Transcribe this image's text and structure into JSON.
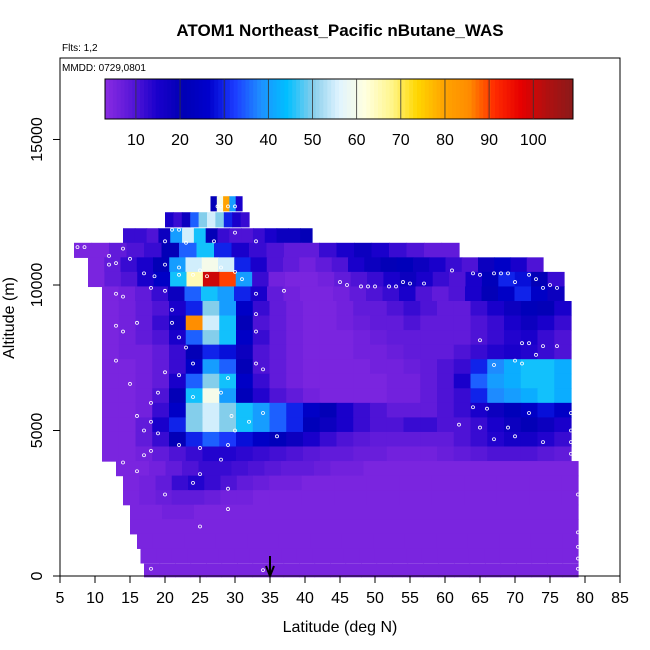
{
  "chart_data": {
    "type": "heatmap",
    "title": "ATOM1 Northeast_Pacific nButane_WAS",
    "annotations": {
      "flights": "Flts: 1,2",
      "dates": "MMDD: 0729,0801"
    },
    "xlabel": "Latitude (deg N)",
    "ylabel": "Altitude (m)",
    "xlim": [
      5,
      85
    ],
    "ylim": [
      0,
      17800
    ],
    "xticks": [
      "5",
      "10",
      "15",
      "20",
      "25",
      "30",
      "35",
      "40",
      "45",
      "50",
      "55",
      "60",
      "65",
      "70",
      "75",
      "80",
      "85"
    ],
    "yticks": [
      "0",
      "5000",
      "10000",
      "15000"
    ],
    "colorbar": {
      "min": 3,
      "max": 109,
      "ticks": [
        "10",
        "20",
        "30",
        "40",
        "50",
        "60",
        "70",
        "80",
        "90",
        "100"
      ],
      "colors": [
        "#8a2be2",
        "#5a18d8",
        "#1a00cc",
        "#0000b4",
        "#0000cd",
        "#1c3cff",
        "#1e90ff",
        "#00bfff",
        "#87ceeb",
        "#e0f4ff",
        "#ffffe0",
        "#fff68f",
        "#ffd700",
        "#ffa500",
        "#ff8c00",
        "#ff2a00",
        "#e60000",
        "#b01010",
        "#8b1a1a"
      ]
    },
    "marker": {
      "latitude": 35,
      "label": "arrow"
    },
    "grid": false,
    "curtain_rows": [
      {
        "alt": 12800,
        "h": 500,
        "x0": 26.5,
        "x1": 31,
        "vals": [
          20,
          60,
          80,
          40,
          15
        ]
      },
      {
        "alt": 12250,
        "h": 500,
        "x0": 20,
        "x1": 32,
        "vals": [
          15,
          12,
          18,
          35,
          50,
          55,
          50,
          30,
          15,
          12
        ]
      },
      {
        "alt": 11700,
        "h": 500,
        "x0": 14,
        "x1": 41,
        "vals": [
          12,
          12,
          10,
          18,
          40,
          55,
          45,
          20,
          12,
          10,
          10,
          12,
          15,
          18,
          18,
          20
        ]
      },
      {
        "alt": 11200,
        "h": 500,
        "x0": 7,
        "x1": 62,
        "vals": [
          5,
          5,
          8,
          10,
          12,
          20,
          35,
          45,
          30,
          15,
          12,
          10,
          8,
          8,
          12,
          15,
          18,
          15,
          12,
          10,
          8,
          8
        ]
      },
      {
        "alt": 10700,
        "h": 500,
        "x0": 9,
        "x1": 74,
        "vals": [
          5,
          8,
          12,
          15,
          20,
          40,
          55,
          60,
          55,
          30,
          15,
          10,
          8,
          6,
          8,
          10,
          15,
          18,
          20,
          22,
          18,
          15,
          12,
          10,
          18,
          25,
          15,
          10
        ]
      },
      {
        "alt": 10200,
        "h": 500,
        "x0": 9,
        "x1": 77,
        "vals": [
          5,
          8,
          10,
          15,
          25,
          45,
          65,
          100,
          90,
          40,
          12,
          6,
          5,
          5,
          6,
          8,
          10,
          12,
          15,
          18,
          15,
          12,
          10,
          15,
          22,
          30,
          28,
          20,
          12
        ]
      },
      {
        "alt": 9700,
        "h": 500,
        "x0": 11,
        "x1": 77,
        "vals": [
          5,
          6,
          8,
          12,
          18,
          35,
          45,
          40,
          30,
          15,
          8,
          6,
          5,
          5,
          6,
          8,
          10,
          12,
          15,
          10,
          8,
          10,
          15,
          20,
          25,
          30,
          25,
          18
        ]
      },
      {
        "alt": 9200,
        "h": 500,
        "x0": 11,
        "x1": 78,
        "vals": [
          5,
          6,
          8,
          10,
          15,
          30,
          50,
          40,
          25,
          12,
          8,
          6,
          5,
          5,
          6,
          8,
          8,
          10,
          12,
          10,
          8,
          8,
          12,
          15,
          18,
          22,
          20,
          15
        ]
      },
      {
        "alt": 8700,
        "h": 500,
        "x0": 11,
        "x1": 78,
        "vals": [
          5,
          6,
          8,
          12,
          18,
          85,
          55,
          45,
          20,
          10,
          8,
          6,
          5,
          5,
          6,
          7,
          8,
          8,
          10,
          8,
          8,
          8,
          10,
          12,
          15,
          18,
          15,
          12
        ]
      },
      {
        "alt": 8200,
        "h": 500,
        "x0": 11,
        "x1": 78,
        "vals": [
          5,
          6,
          8,
          10,
          15,
          35,
          50,
          45,
          25,
          12,
          8,
          6,
          5,
          5,
          5,
          6,
          7,
          8,
          8,
          8,
          8,
          8,
          10,
          12,
          14,
          15,
          12,
          10
        ]
      },
      {
        "alt": 7700,
        "h": 500,
        "x0": 11,
        "x1": 78,
        "vals": [
          5,
          6,
          6,
          8,
          12,
          20,
          30,
          28,
          18,
          10,
          8,
          6,
          5,
          5,
          5,
          6,
          6,
          7,
          8,
          8,
          8,
          10,
          12,
          14,
          15,
          14,
          12,
          10
        ]
      },
      {
        "alt": 7200,
        "h": 500,
        "x0": 11,
        "x1": 78,
        "vals": [
          5,
          5,
          6,
          8,
          12,
          25,
          40,
          35,
          20,
          10,
          8,
          6,
          5,
          5,
          5,
          5,
          6,
          6,
          7,
          8,
          10,
          12,
          30,
          38,
          42,
          45,
          45,
          42
        ]
      },
      {
        "alt": 6700,
        "h": 500,
        "x0": 11,
        "x1": 78,
        "vals": [
          5,
          5,
          6,
          8,
          15,
          35,
          50,
          45,
          25,
          12,
          8,
          6,
          5,
          5,
          5,
          5,
          5,
          6,
          6,
          8,
          10,
          15,
          35,
          40,
          42,
          45,
          45,
          42
        ]
      },
      {
        "alt": 6200,
        "h": 500,
        "x0": 11,
        "x1": 78,
        "vals": [
          5,
          5,
          6,
          10,
          20,
          45,
          60,
          40,
          22,
          14,
          10,
          8,
          6,
          5,
          5,
          5,
          5,
          6,
          6,
          8,
          10,
          12,
          30,
          38,
          40,
          42,
          45,
          42
        ]
      },
      {
        "alt": 5700,
        "h": 500,
        "x0": 11,
        "x1": 78,
        "vals": [
          5,
          5,
          6,
          12,
          25,
          50,
          55,
          50,
          45,
          40,
          35,
          30,
          25,
          20,
          15,
          12,
          10,
          8,
          8,
          8,
          10,
          12,
          15,
          18,
          22,
          25,
          28,
          25
        ]
      },
      {
        "alt": 5200,
        "h": 500,
        "x0": 11,
        "x1": 78,
        "vals": [
          5,
          5,
          8,
          15,
          30,
          50,
          55,
          50,
          45,
          40,
          35,
          30,
          22,
          18,
          15,
          12,
          10,
          10,
          12,
          12,
          10,
          10,
          12,
          15,
          18,
          20,
          18,
          15
        ]
      },
      {
        "alt": 4700,
        "h": 500,
        "x0": 11,
        "x1": 78,
        "vals": [
          5,
          5,
          8,
          12,
          20,
          30,
          35,
          32,
          28,
          25,
          22,
          18,
          15,
          12,
          10,
          9,
          8,
          8,
          8,
          8,
          8,
          10,
          12,
          14,
          16,
          16,
          14,
          12
        ]
      },
      {
        "alt": 4200,
        "h": 500,
        "x0": 11,
        "x1": 78,
        "vals": [
          5,
          5,
          6,
          8,
          10,
          12,
          14,
          14,
          13,
          12,
          11,
          10,
          9,
          8,
          8,
          7,
          7,
          6,
          6,
          6,
          7,
          8,
          9,
          10,
          10,
          10,
          9,
          8
        ]
      },
      {
        "alt": 3700,
        "h": 500,
        "x0": 13,
        "x1": 79,
        "vals": [
          5,
          5,
          6,
          8,
          10,
          12,
          12,
          11,
          10,
          9,
          8,
          8,
          7,
          6,
          6,
          5,
          5,
          5,
          5,
          5,
          5,
          5,
          5,
          5,
          5,
          5,
          5,
          5
        ]
      },
      {
        "alt": 3200,
        "h": 500,
        "x0": 14,
        "x1": 79,
        "vals": [
          5,
          6,
          8,
          12,
          14,
          12,
          10,
          8,
          7,
          6,
          6,
          5,
          5,
          5,
          5,
          5,
          5,
          5,
          5,
          5,
          5,
          5,
          5,
          5,
          5,
          5,
          5,
          5
        ]
      },
      {
        "alt": 2700,
        "h": 500,
        "x0": 14,
        "x1": 79,
        "vals": [
          5,
          6,
          7,
          8,
          8,
          7,
          6,
          6,
          5,
          5,
          5,
          5,
          5,
          5,
          5,
          5,
          5,
          5,
          5,
          5,
          5,
          5,
          5,
          5,
          5,
          5,
          5,
          5
        ]
      },
      {
        "alt": 2200,
        "h": 500,
        "x0": 15,
        "x1": 79,
        "vals": [
          5,
          5,
          6,
          6,
          5,
          5,
          5,
          5,
          5,
          5,
          5,
          5,
          5,
          5,
          5,
          5,
          5,
          5,
          5,
          5,
          5,
          5,
          5,
          5,
          5,
          5,
          5,
          5
        ]
      },
      {
        "alt": 1700,
        "h": 500,
        "x0": 15,
        "x1": 79,
        "vals": [
          5,
          5,
          5,
          5,
          5,
          5,
          5,
          5,
          5,
          5,
          5,
          5,
          5,
          5,
          5,
          5,
          5,
          5,
          5,
          5,
          5,
          5,
          5,
          5,
          5,
          5,
          5,
          5
        ]
      },
      {
        "alt": 1200,
        "h": 500,
        "x0": 16,
        "x1": 79,
        "vals": [
          5,
          5,
          5,
          5,
          5,
          5,
          5,
          5,
          5,
          5,
          5,
          5,
          5,
          5,
          5,
          5,
          5,
          5,
          5,
          5,
          5,
          5,
          5,
          5,
          5,
          5,
          5,
          5
        ]
      },
      {
        "alt": 700,
        "h": 500,
        "x0": 16.5,
        "x1": 79,
        "vals": [
          5,
          5,
          5,
          5,
          5,
          5,
          5,
          5,
          5,
          5,
          5,
          5,
          5,
          5,
          5,
          5,
          5,
          5,
          5,
          5,
          5,
          5,
          5,
          5,
          5,
          5,
          5,
          5
        ]
      },
      {
        "alt": 200,
        "h": 450,
        "x0": 17,
        "x1": 79,
        "vals": [
          5,
          5,
          5,
          5,
          5,
          5,
          5,
          5,
          5,
          5,
          5,
          5,
          5,
          5,
          5,
          5,
          5,
          5,
          5,
          5,
          5,
          5,
          5,
          5,
          5,
          5,
          5,
          5
        ]
      }
    ],
    "sample_points": [
      [
        27.5,
        12700
      ],
      [
        28,
        12700
      ],
      [
        29,
        12700
      ],
      [
        30,
        12700
      ],
      [
        21,
        11900
      ],
      [
        22,
        11900
      ],
      [
        30,
        11800
      ],
      [
        20,
        11500
      ],
      [
        23,
        11450
      ],
      [
        27,
        11500
      ],
      [
        33,
        11500
      ],
      [
        7.5,
        11300
      ],
      [
        8.5,
        11300
      ],
      [
        14,
        11250
      ],
      [
        12,
        11000
      ],
      [
        15,
        10900
      ],
      [
        12,
        10700
      ],
      [
        13,
        10750
      ],
      [
        20,
        10700
      ],
      [
        22,
        10600
      ],
      [
        25,
        10500
      ],
      [
        28,
        10600
      ],
      [
        30,
        10450
      ],
      [
        17,
        10400
      ],
      [
        18.5,
        10300
      ],
      [
        22,
        10350
      ],
      [
        24,
        10350
      ],
      [
        26,
        10300
      ],
      [
        31,
        10200
      ],
      [
        54,
        10100
      ],
      [
        55,
        10050
      ],
      [
        57,
        10050
      ],
      [
        67,
        10400
      ],
      [
        68,
        10400
      ],
      [
        69,
        10400
      ],
      [
        45,
        10100
      ],
      [
        46,
        10000
      ],
      [
        48,
        9950
      ],
      [
        49,
        9950
      ],
      [
        50,
        9950
      ],
      [
        52,
        9950
      ],
      [
        53,
        9950
      ],
      [
        65,
        10350
      ],
      [
        64,
        10400
      ],
      [
        61,
        10500
      ],
      [
        72,
        10350
      ],
      [
        73,
        10200
      ],
      [
        75,
        10000
      ],
      [
        74,
        9900
      ],
      [
        76,
        9900
      ],
      [
        70,
        10100
      ],
      [
        18,
        9900
      ],
      [
        20,
        9800
      ],
      [
        13,
        9700
      ],
      [
        14,
        9600
      ],
      [
        33,
        9700
      ],
      [
        37,
        9800
      ],
      [
        33,
        9000
      ],
      [
        21,
        9150
      ],
      [
        16,
        8700
      ],
      [
        21,
        8700
      ],
      [
        9,
        8600
      ],
      [
        13,
        8600
      ],
      [
        14,
        8400
      ],
      [
        22,
        8200
      ],
      [
        33,
        8400
      ],
      [
        23,
        7850
      ],
      [
        65,
        8100
      ],
      [
        71,
        8000
      ],
      [
        72,
        8000
      ],
      [
        74,
        7900
      ],
      [
        76,
        7900
      ],
      [
        73,
        7600
      ],
      [
        67,
        7250
      ],
      [
        70,
        7400
      ],
      [
        71,
        7300
      ],
      [
        13,
        7400
      ],
      [
        24,
        7300
      ],
      [
        33,
        7300
      ],
      [
        34,
        7100
      ],
      [
        20,
        7000
      ],
      [
        22,
        6900
      ],
      [
        29,
        6800
      ],
      [
        15,
        6600
      ],
      [
        9,
        6500
      ],
      [
        19,
        6300
      ],
      [
        24,
        6150
      ],
      [
        28,
        6300
      ],
      [
        10,
        6200
      ],
      [
        18,
        5950
      ],
      [
        64,
        5800
      ],
      [
        66,
        5750
      ],
      [
        72,
        5600
      ],
      [
        78,
        5600
      ],
      [
        16,
        5500
      ],
      [
        18,
        5300
      ],
      [
        34,
        5600
      ],
      [
        32,
        5300
      ],
      [
        30,
        5000
      ],
      [
        29.5,
        5500
      ],
      [
        62,
        5200
      ],
      [
        65,
        5100
      ],
      [
        69,
        5100
      ],
      [
        78,
        5000
      ],
      [
        17,
        5000
      ],
      [
        19,
        4900
      ],
      [
        67,
        4700
      ],
      [
        70,
        4800
      ],
      [
        74,
        4600
      ],
      [
        78,
        4600
      ],
      [
        22,
        4500
      ],
      [
        29,
        4500
      ],
      [
        36,
        4800
      ],
      [
        25,
        4400
      ],
      [
        18,
        4300
      ],
      [
        17,
        4150
      ],
      [
        28,
        4000
      ],
      [
        14,
        3900
      ],
      [
        78,
        4200
      ],
      [
        16,
        3600
      ],
      [
        25,
        3500
      ],
      [
        24,
        3200
      ],
      [
        29,
        3000
      ],
      [
        10,
        2950
      ],
      [
        79,
        2800
      ],
      [
        13,
        2900
      ],
      [
        20,
        2800
      ],
      [
        29,
        2300
      ],
      [
        25,
        1700
      ],
      [
        79,
        1500
      ],
      [
        79,
        1000
      ],
      [
        79,
        600
      ],
      [
        18,
        250
      ],
      [
        34,
        200
      ],
      [
        79,
        250
      ]
    ]
  }
}
